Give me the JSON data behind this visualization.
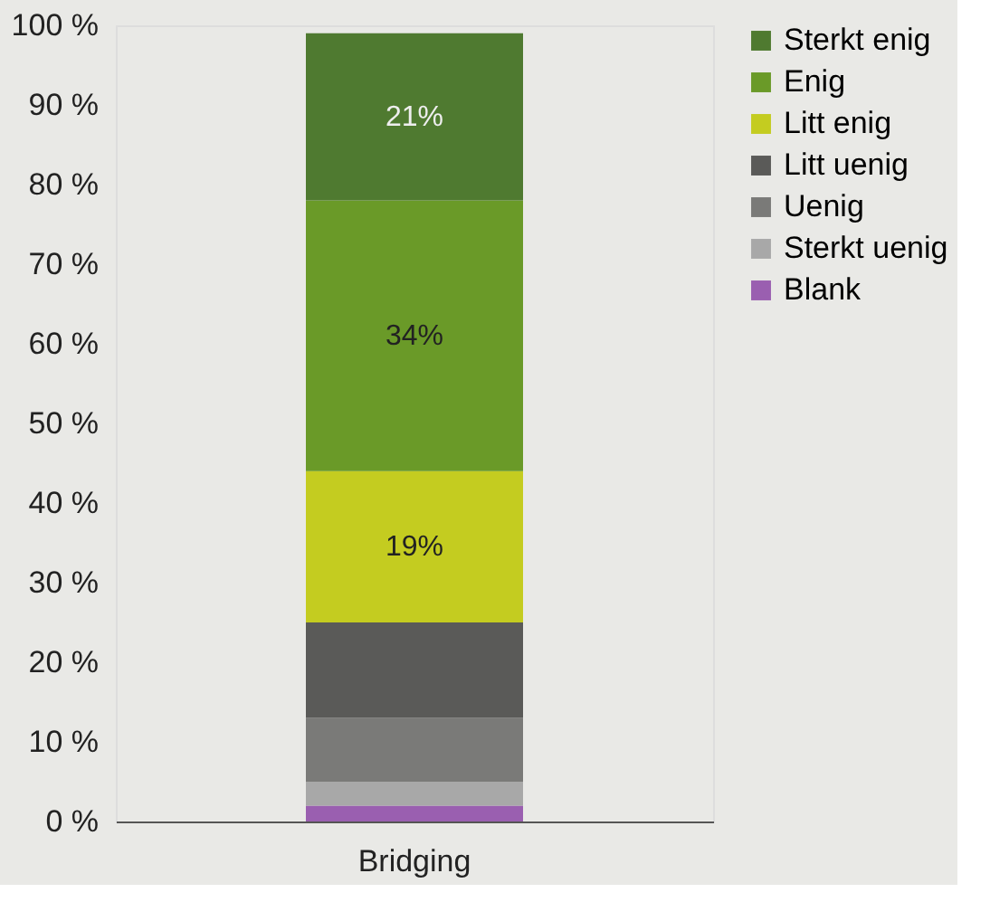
{
  "chart_data": {
    "type": "bar",
    "stacked": true,
    "categories": [
      "Bridging"
    ],
    "series": [
      {
        "name": "Blank",
        "color": "#9a5fb0",
        "values": [
          2
        ]
      },
      {
        "name": "Sterkt uenig",
        "color": "#a8a8a8",
        "values": [
          3
        ]
      },
      {
        "name": "Uenig",
        "color": "#7a7a78",
        "values": [
          8
        ]
      },
      {
        "name": "Litt uenig",
        "color": "#5a5a58",
        "values": [
          12
        ]
      },
      {
        "name": "Litt enig",
        "color": "#c4cc20",
        "values": [
          19
        ],
        "value_labels": [
          "19%"
        ]
      },
      {
        "name": "Enig",
        "color": "#6a9a28",
        "values": [
          34
        ],
        "value_labels": [
          "34%"
        ]
      },
      {
        "name": "Sterkt enig",
        "color": "#4f7a30",
        "values": [
          21
        ],
        "value_labels": [
          "21%"
        ]
      }
    ],
    "ylim": [
      0,
      100
    ],
    "yticks": [
      {
        "value": 0,
        "label": "0 %"
      },
      {
        "value": 10,
        "label": "10 %"
      },
      {
        "value": 20,
        "label": "20 %"
      },
      {
        "value": 30,
        "label": "30 %"
      },
      {
        "value": 40,
        "label": "40 %"
      },
      {
        "value": 50,
        "label": "50 %"
      },
      {
        "value": 60,
        "label": "60 %"
      },
      {
        "value": 70,
        "label": "70 %"
      },
      {
        "value": 80,
        "label": "80 %"
      },
      {
        "value": 90,
        "label": "90 %"
      },
      {
        "value": 100,
        "label": "100 %"
      }
    ],
    "legend": "right",
    "grid": false
  }
}
